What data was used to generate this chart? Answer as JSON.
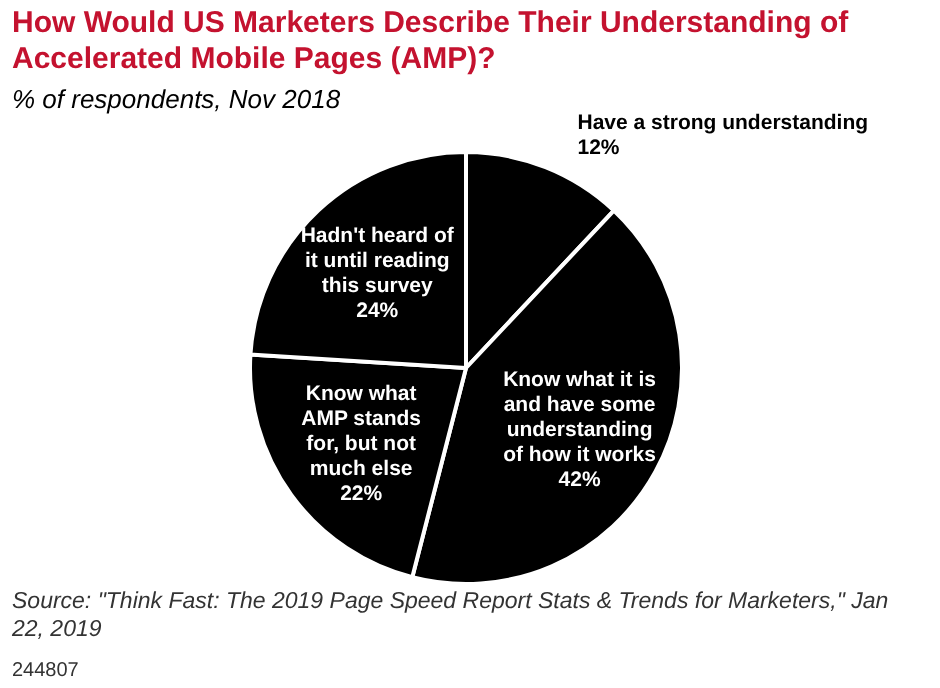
{
  "chart_data": {
    "type": "pie",
    "title": "How Would US Marketers Describe Their Understanding of Accelerated Mobile Pages (AMP)?",
    "subtitle": "% of respondents, Nov 2018",
    "categories": [
      "Have a strong understanding",
      "Know what it is and have some understanding of how it works",
      "Know what AMP stands for, but not much else",
      "Hadn't heard of it until reading this survey"
    ],
    "values": [
      12,
      42,
      22,
      24
    ],
    "value_labels": [
      "12%",
      "42%",
      "22%",
      "24%"
    ],
    "colors": [
      "#000000",
      "#000000",
      "#000000",
      "#000000"
    ],
    "annotations": [
      "Source: \"Think Fast: The 2019 Page Speed Report Stats & Trends for Marketers,\" Jan 22, 2019",
      "244807"
    ]
  }
}
